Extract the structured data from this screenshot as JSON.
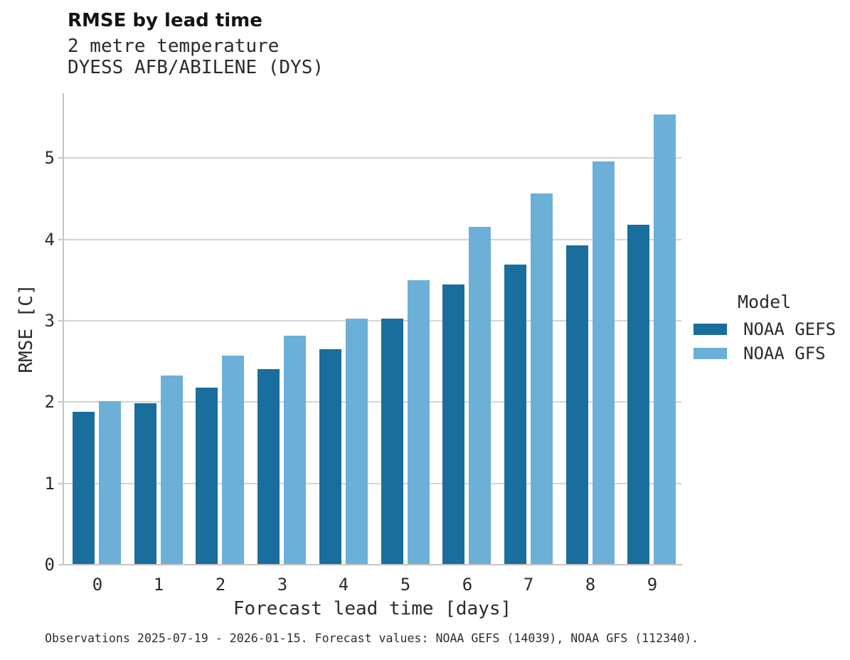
{
  "chart_data": {
    "type": "bar",
    "title": "RMSE by lead time",
    "subtitle_lines": [
      "2 metre temperature",
      "DYESS AFB/ABILENE (DYS)"
    ],
    "xlabel": "Forecast lead time [days]",
    "ylabel": "RMSE [C]",
    "categories": [
      "0",
      "1",
      "2",
      "3",
      "4",
      "5",
      "6",
      "7",
      "8",
      "9"
    ],
    "yticks": [
      0,
      1,
      2,
      3,
      4,
      5
    ],
    "ylim": [
      0,
      5.79
    ],
    "grid": "horizontal-only",
    "legend": {
      "title": "Model",
      "position": "right"
    },
    "series": [
      {
        "name": "NOAA GEFS",
        "color": "#1a6e9d",
        "values": [
          1.87,
          1.98,
          2.17,
          2.4,
          2.64,
          3.02,
          3.44,
          3.68,
          3.92,
          4.17
        ]
      },
      {
        "name": "NOAA GFS",
        "color": "#6cb0d7",
        "values": [
          2.0,
          2.32,
          2.56,
          2.81,
          3.02,
          3.49,
          4.15,
          4.56,
          4.95,
          5.53
        ]
      }
    ],
    "caption": "Observations 2025-07-19 - 2026-01-15. Forecast values: NOAA GEFS (14039), NOAA GFS (112340)."
  },
  "colors": {
    "grid": "#d4d4d4",
    "axis": "#c6c6c6",
    "background": "#ffffff"
  }
}
